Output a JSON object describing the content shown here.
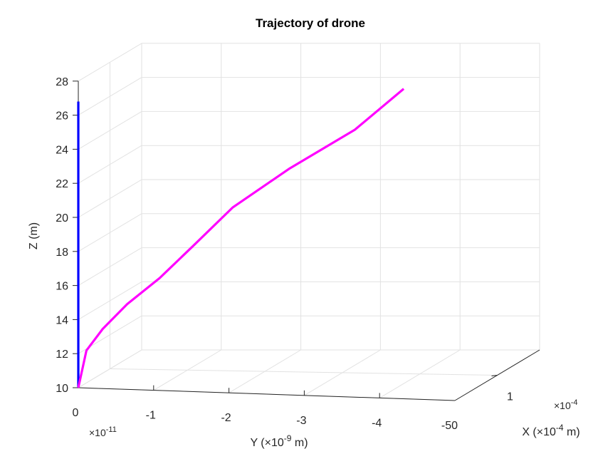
{
  "chart_data": {
    "type": "line3d",
    "title": "Trajectory of drone",
    "xlabel": "X (×10",
    "xlabel_exp": "-4",
    "xlabel_tail": " m)",
    "ylabel": "Y (×10",
    "ylabel_exp": "-9",
    "ylabel_tail": " m)",
    "zlabel": "Z (m)",
    "x_multiplier": "×10",
    "x_multiplier_exp": "-4",
    "y_multiplier": "×10",
    "y_multiplier_exp": "-11",
    "x_ticks": [
      "1",
      "-50"
    ],
    "y_ticks": [
      "0",
      "-1",
      "-2",
      "-3",
      "-4"
    ],
    "z_ticks": [
      "10",
      "12",
      "14",
      "16",
      "18",
      "20",
      "22",
      "24",
      "26",
      "28"
    ],
    "zlim": [
      10,
      28
    ],
    "grid": true,
    "series": [
      {
        "color": "#0000ff",
        "points": [
          [
            0,
            0,
            10
          ],
          [
            0,
            0,
            26.8
          ]
        ]
      },
      {
        "color": "#ff00ff",
        "points": [
          [
            0.0,
            0.0,
            10.0
          ],
          [
            0.2,
            -0.01,
            12.2
          ],
          [
            0.5,
            -0.03,
            13.5
          ],
          [
            1.0,
            -0.06,
            15.0
          ],
          [
            1.5,
            -0.1,
            16.6
          ],
          [
            2.0,
            -0.14,
            18.5
          ],
          [
            2.6,
            -0.19,
            20.9
          ],
          [
            3.4,
            -0.26,
            23.3
          ],
          [
            4.2,
            -0.34,
            25.7
          ],
          [
            5.0,
            -0.4,
            28.2
          ]
        ]
      }
    ]
  }
}
